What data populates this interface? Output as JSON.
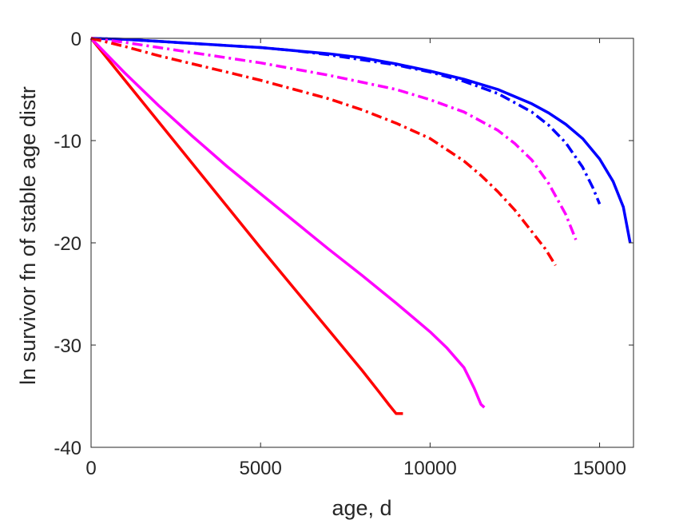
{
  "chart_data": {
    "type": "line",
    "xlabel": "age, d",
    "ylabel": "ln survivor fn of stable age distr",
    "xlim": [
      0,
      16000
    ],
    "ylim": [
      -40,
      0
    ],
    "xticks": [
      0,
      5000,
      10000,
      15000
    ],
    "yticks": [
      0,
      -10,
      -20,
      -30,
      -40
    ],
    "xtick_labels": [
      "0",
      "5000",
      "10000",
      "15000"
    ],
    "ytick_labels": [
      "0",
      "-10",
      "-20",
      "-30",
      "-40"
    ],
    "grid": false,
    "box": true,
    "series": [
      {
        "color": "#ff0000",
        "style": "solid",
        "x": [
          0,
          1000,
          2000,
          3000,
          4000,
          5000,
          6000,
          7000,
          8000,
          8500,
          8800,
          9000,
          9200
        ],
        "y": [
          0,
          -4.1,
          -8.2,
          -12.3,
          -16.4,
          -20.5,
          -24.5,
          -28.5,
          -32.5,
          -34.6,
          -35.9,
          -36.7,
          -36.7
        ]
      },
      {
        "color": "#ff00ff",
        "style": "solid",
        "x": [
          0,
          1000,
          2000,
          3000,
          4000,
          5000,
          6000,
          7000,
          8000,
          9000,
          10000,
          10500,
          11000,
          11300,
          11500,
          11600
        ],
        "y": [
          0,
          -3.4,
          -6.6,
          -9.6,
          -12.5,
          -15.2,
          -17.9,
          -20.6,
          -23.2,
          -25.9,
          -28.7,
          -30.3,
          -32.2,
          -34.2,
          -35.8,
          -36.1
        ]
      },
      {
        "color": "#0000ff",
        "style": "solid",
        "x": [
          0,
          1000,
          2000,
          3000,
          4000,
          5000,
          6000,
          7000,
          8000,
          9000,
          10000,
          11000,
          12000,
          13000,
          13500,
          14000,
          14500,
          15000,
          15400,
          15700,
          15900
        ],
        "y": [
          0,
          -0.1,
          -0.3,
          -0.5,
          -0.7,
          -0.9,
          -1.2,
          -1.5,
          -1.9,
          -2.5,
          -3.2,
          -4.0,
          -5.0,
          -6.4,
          -7.3,
          -8.4,
          -9.8,
          -11.8,
          -14.0,
          -16.5,
          -20.0
        ]
      },
      {
        "color": "#0000ff",
        "style": "dashdot",
        "x": [
          0,
          1000,
          2000,
          3000,
          4000,
          5000,
          6000,
          7000,
          8000,
          9000,
          10000,
          11000,
          12000,
          13000,
          13500,
          14000,
          14500,
          14800,
          15000
        ],
        "y": [
          0,
          -0.1,
          -0.3,
          -0.5,
          -0.7,
          -0.9,
          -1.2,
          -1.6,
          -2.1,
          -2.6,
          -3.3,
          -4.2,
          -5.4,
          -7.2,
          -8.5,
          -10.2,
          -12.6,
          -14.6,
          -16.2
        ]
      },
      {
        "color": "#ff00ff",
        "style": "dashdot",
        "x": [
          0,
          1000,
          2000,
          3000,
          4000,
          5000,
          6000,
          7000,
          8000,
          9000,
          10000,
          11000,
          12000,
          12500,
          13000,
          13500,
          14000,
          14300
        ],
        "y": [
          0,
          -0.4,
          -0.9,
          -1.4,
          -1.9,
          -2.4,
          -3.0,
          -3.6,
          -4.3,
          -5.0,
          -6.0,
          -7.2,
          -9.0,
          -10.3,
          -11.9,
          -14.2,
          -17.2,
          -19.7
        ]
      },
      {
        "color": "#ff0000",
        "style": "dashdot",
        "x": [
          0,
          1000,
          2000,
          3000,
          4000,
          5000,
          6000,
          7000,
          8000,
          9000,
          10000,
          11000,
          11500,
          12000,
          12500,
          13000,
          13400,
          13700
        ],
        "y": [
          0,
          -0.8,
          -1.7,
          -2.5,
          -3.3,
          -4.1,
          -5.0,
          -5.9,
          -7.0,
          -8.3,
          -9.8,
          -12.0,
          -13.4,
          -15.0,
          -16.8,
          -18.9,
          -20.6,
          -22.2
        ]
      }
    ]
  }
}
